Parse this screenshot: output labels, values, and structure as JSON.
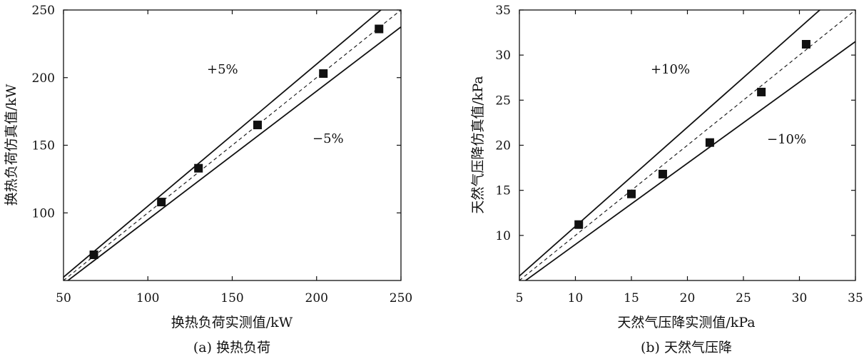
{
  "chart_data": [
    {
      "type": "scatter",
      "caption": "(a) 换热负荷",
      "xlabel": "换热负荷实测值/kW",
      "ylabel": "换热负荷仿真值/kW",
      "xlim": [
        50,
        250
      ],
      "ylim": [
        50,
        250
      ],
      "xticks": [
        50,
        100,
        150,
        200,
        250
      ],
      "yticks": [
        100,
        150,
        200,
        250
      ],
      "band_labels": {
        "upper": "+5%",
        "lower": "−5%"
      },
      "reference_lines": {
        "identity": "y = x",
        "upper_factor": 1.05,
        "lower_factor": 0.95
      },
      "points": {
        "x": [
          68,
          108,
          130,
          165,
          204,
          237
        ],
        "y": [
          69,
          108,
          133,
          165,
          203,
          236
        ]
      }
    },
    {
      "type": "scatter",
      "caption": "(b) 天然气压降",
      "xlabel": "天然气压降实测值/kPa",
      "ylabel": "天然气压降仿真值/kPa",
      "xlim": [
        5,
        35
      ],
      "ylim": [
        5,
        35
      ],
      "xticks": [
        5,
        10,
        15,
        20,
        25,
        30,
        35
      ],
      "yticks": [
        10,
        15,
        20,
        25,
        30,
        35
      ],
      "band_labels": {
        "upper": "+10%",
        "lower": "−10%"
      },
      "reference_lines": {
        "identity": "y = x",
        "upper_factor": 1.1,
        "lower_factor": 0.9
      },
      "points": {
        "x": [
          10.3,
          15.0,
          17.8,
          22.0,
          26.6,
          30.6
        ],
        "y": [
          11.2,
          14.6,
          16.8,
          20.3,
          25.9,
          31.2
        ]
      }
    }
  ]
}
